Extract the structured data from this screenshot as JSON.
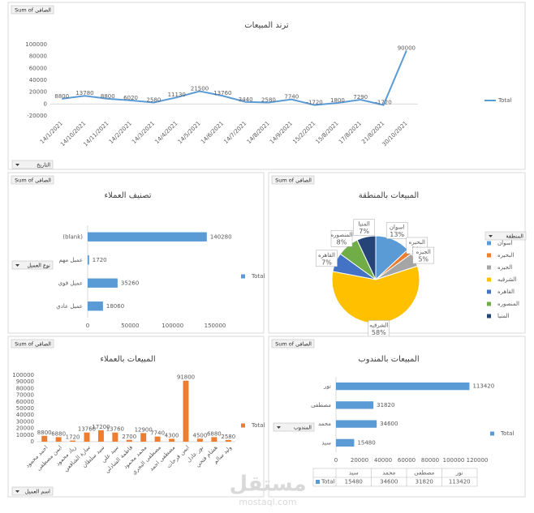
{
  "chart_data": [
    {
      "type": "line",
      "title": "ترند المبيعات",
      "value_field": "Sum of الصافى",
      "axis_field": "التاريخ",
      "x": [
        "14/1/2021",
        "14/10/2021",
        "14/11/2021",
        "14/2/2021",
        "14/3/2021",
        "14/4/2021",
        "14/5/2021",
        "14/6/2021",
        "14/7/2021",
        "14/8/2021",
        "14/9/2021",
        "15/2/2021",
        "15/8/2021",
        "17/8/2021",
        "21/8/2021",
        "30/10/2021"
      ],
      "series": [
        {
          "name": "Total",
          "color": "#5b9bd5",
          "values": [
            8800,
            13780,
            8800,
            6020,
            2580,
            11130,
            21500,
            13760,
            3440,
            2580,
            7740,
            -1720,
            1800,
            7290,
            -1720,
            90000
          ]
        }
      ],
      "ylim": [
        -20000,
        100000
      ],
      "yticks": [
        -20000,
        0,
        20000,
        40000,
        60000,
        80000,
        100000
      ],
      "grid": false,
      "data_labels": true,
      "legend": "right"
    },
    {
      "type": "hbar",
      "title": "تصنيف العملاء",
      "value_field": "Sum of الصافى",
      "axis_field": "نوع العميل",
      "categories": [
        "عميل عادي",
        "عميل قوي",
        "عميل مهم",
        "(blank)"
      ],
      "series": [
        {
          "name": "Total",
          "color": "#5b9bd5",
          "values": [
            18060,
            35260,
            1720,
            140280
          ]
        }
      ],
      "xlim": [
        0,
        150000
      ],
      "xticks": [
        0,
        50000,
        100000,
        150000
      ],
      "grid": false,
      "data_labels": true,
      "legend": "right"
    },
    {
      "type": "pie",
      "title": "المبيعات بالمنطقة",
      "value_field": "Sum of الصافى",
      "axis_field": "المنطقة",
      "categories": [
        "اسوان",
        "البحيره",
        "الجيزه",
        "الشرقيه",
        "القاهره",
        "المنصوره",
        "المنيا"
      ],
      "values": [
        13,
        2,
        5,
        58,
        7,
        8,
        7
      ],
      "value_labels": [
        "13%",
        "2%",
        "5%",
        "58%",
        "7%",
        "8%",
        "7%"
      ],
      "colors": [
        "#5b9bd5",
        "#ed7d31",
        "#a5a5a5",
        "#ffc000",
        "#4472c4",
        "#70ad47",
        "#264478"
      ],
      "legend": "right"
    },
    {
      "type": "bar",
      "title": "المبيعات بالعملاء",
      "value_field": "Sum of الصافى",
      "axis_field": "اسم العميل",
      "categories": [
        "احمد محمود",
        "ايمن مصطفى",
        "زياد محمود",
        "سارة الشافعي",
        "سيد سلطان",
        "سيد علي",
        "فاطمة الشاذلي",
        "محمد محمود",
        "مصطفى البحري",
        "مصطفى احمد",
        "ايمن فرحات",
        "نور عادل",
        "هشام فتحي",
        "وليد سالم"
      ],
      "series": [
        {
          "name": "Total",
          "color": "#ed7d31",
          "values": [
            8800,
            6880,
            1720,
            13760,
            17200,
            13760,
            2700,
            12900,
            7740,
            4300,
            91800,
            4500,
            6880,
            2580
          ]
        }
      ],
      "ylim": [
        0,
        100000
      ],
      "yticks": [
        0,
        10000,
        20000,
        30000,
        40000,
        50000,
        60000,
        70000,
        80000,
        90000,
        100000
      ],
      "grid": false,
      "data_labels": true,
      "legend": "right"
    },
    {
      "type": "hbar",
      "title": "المبيعات بالمندوب",
      "value_field": "Sum of الصافى",
      "axis_field": "المندوب",
      "categories": [
        "سيد",
        "محمد",
        "مصطفى",
        "نور"
      ],
      "series": [
        {
          "name": "Total",
          "color": "#5b9bd5",
          "values": [
            15480,
            34600,
            31820,
            113420
          ]
        }
      ],
      "xlim": [
        0,
        120000
      ],
      "xticks": [
        0,
        20000,
        40000,
        60000,
        80000,
        100000,
        120000
      ],
      "grid": false,
      "data_labels": true,
      "legend": "right",
      "data_table": true
    }
  ],
  "watermark": {
    "brand": "مستقل",
    "site": "mostaql.com"
  }
}
